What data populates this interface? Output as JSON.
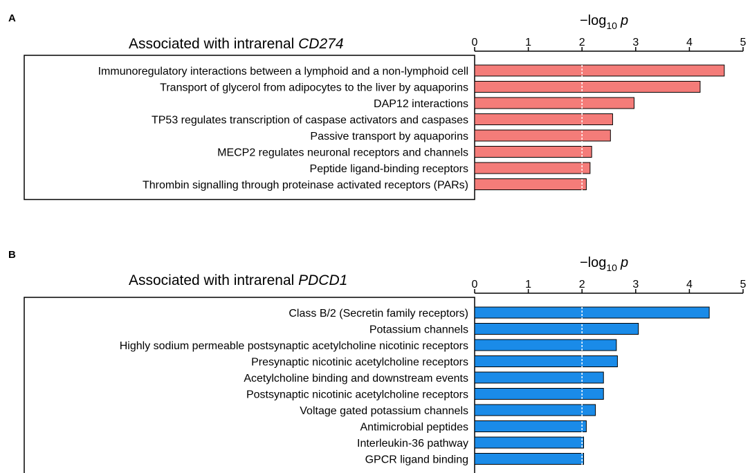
{
  "colors": {
    "panel_a_bar": "#f47c79",
    "panel_b_bar": "#1a8be8"
  },
  "chart_data": [
    {
      "type": "bar",
      "orientation": "horizontal",
      "panel": "A",
      "title_prefix": "Associated with intrarenal ",
      "title_gene": "CD274",
      "xlabel_main": "−log",
      "xlabel_sub": "10",
      "xlabel_var": "p",
      "xlim": [
        0,
        5
      ],
      "ticks": [
        0,
        1,
        2,
        3,
        4,
        5
      ],
      "threshold": 2,
      "categories": [
        "Immunoregulatory interactions between a lymphoid and a non-lymphoid cell",
        "Transport of glycerol from adipocytes to the liver by aquaporins",
        "DAP12 interactions",
        "TP53 regulates transcription of caspase activators and caspases",
        "Passive transport by aquaporins",
        "MECP2 regulates neuronal receptors and channels",
        "Peptide ligand-binding receptors",
        "Thrombin signalling through proteinase activated receptors (PARs)"
      ],
      "values": [
        4.65,
        4.2,
        2.97,
        2.57,
        2.53,
        2.18,
        2.15,
        2.08
      ]
    },
    {
      "type": "bar",
      "orientation": "horizontal",
      "panel": "B",
      "title_prefix": "Associated with intrarenal ",
      "title_gene": "PDCD1",
      "xlabel_main": "−log",
      "xlabel_sub": "10",
      "xlabel_var": "p",
      "xlim": [
        0,
        5
      ],
      "ticks": [
        0,
        1,
        2,
        3,
        4,
        5
      ],
      "threshold": 2,
      "categories": [
        "Class B/2 (Secretin family receptors)",
        "Potassium channels",
        "Highly sodium permeable postsynaptic acetylcholine nicotinic receptors",
        "Presynaptic nicotinic acetylcholine receptors",
        "Acetylcholine binding and downstream events",
        "Postsynaptic nicotinic acetylcholine receptors",
        "Voltage gated potassium channels",
        "Antimicrobial peptides",
        "Interleukin-36 pathway",
        "GPCR ligand binding"
      ],
      "values": [
        4.37,
        3.05,
        2.64,
        2.66,
        2.4,
        2.4,
        2.25,
        2.08,
        2.03,
        2.03
      ]
    }
  ]
}
